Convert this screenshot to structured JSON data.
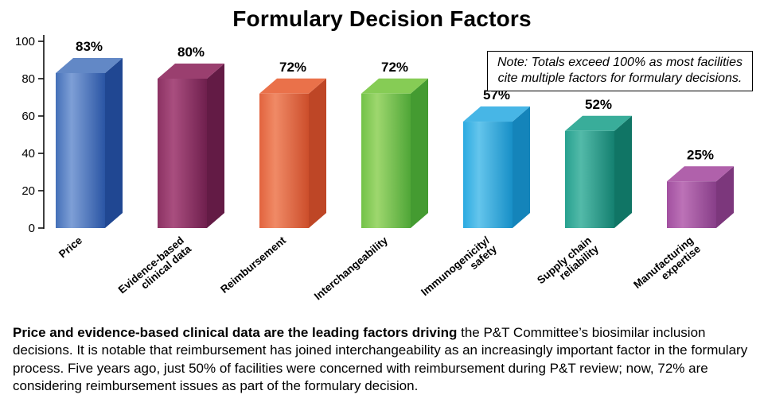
{
  "title": "Formulary Decision Factors",
  "note": {
    "line1": "Note: Totals exceed 100% as most facilities",
    "line2": "cite multiple factors for formulary decisions."
  },
  "caption": {
    "bold": "Price and evidence-based clinical data are the leading factors driving",
    "rest": " the P&T Committee’s biosimilar inclusion decisions. It is notable that reimbursement has joined interchangeability as an increasingly important factor in the formulary process. Five years ago, just 50% of facilities were concerned with reimbursement during P&T review; now, 72% are considering reimbursement issues as part of the formulary decision."
  },
  "chart_data": {
    "type": "bar",
    "style": "3d",
    "title": "Formulary Decision Factors",
    "categories": [
      "Price",
      "Evidence-based\nclinical data",
      "Reimbursement",
      "Interchangeability",
      "Immunogenicity/\nsafety",
      "Supply chain\nreliability",
      "Manufacturing\nexpertise"
    ],
    "values": [
      83,
      80,
      72,
      72,
      57,
      52,
      25
    ],
    "value_labels": [
      "83%",
      "80%",
      "72%",
      "72%",
      "57%",
      "52%",
      "25%"
    ],
    "xlabel": "",
    "ylabel": "",
    "ylim": [
      0,
      100
    ],
    "yticks": [
      0,
      20,
      40,
      60,
      80,
      100
    ],
    "grid": false,
    "legend": false,
    "bar_colors": [
      {
        "light": "#7E9FD6",
        "base": "#4470B8",
        "dark": "#2A55A4",
        "side": "#204792",
        "top": "#6288C6"
      },
      {
        "light": "#A94E7F",
        "base": "#8C3263",
        "dark": "#6F1F4D",
        "side": "#631B45",
        "top": "#9A3F6F"
      },
      {
        "light": "#F08A66",
        "base": "#E2633E",
        "dark": "#CC4E2B",
        "side": "#BE4626",
        "top": "#EA714A"
      },
      {
        "light": "#9ED76E",
        "base": "#72C247",
        "dark": "#4FA637",
        "side": "#449B31",
        "top": "#86CC55"
      },
      {
        "light": "#64C5EC",
        "base": "#2BAAE1",
        "dark": "#178FC7",
        "side": "#1484BA",
        "top": "#47B6E6"
      },
      {
        "light": "#53BAA9",
        "base": "#27A18F",
        "dark": "#148070",
        "side": "#107565",
        "top": "#39AD9A"
      },
      {
        "light": "#BC72B7",
        "base": "#A250A0",
        "dark": "#873E88",
        "side": "#7C377C",
        "top": "#B061AB"
      }
    ],
    "axis_color": "#000000"
  }
}
